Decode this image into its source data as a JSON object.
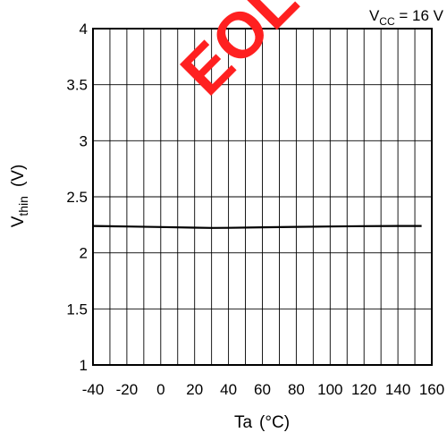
{
  "chart_data": {
    "type": "line",
    "xlabel": "Ta",
    "xlabel_unit": "(°C)",
    "ylabel_main": "V",
    "ylabel_sub": "thin",
    "ylabel_unit": "(V)",
    "xlim": [
      -40,
      160
    ],
    "ylim": [
      1,
      4
    ],
    "x_ticks": [
      -40,
      -20,
      0,
      20,
      40,
      60,
      80,
      100,
      120,
      140,
      160
    ],
    "y_ticks": [
      1,
      1.5,
      2,
      2.5,
      3,
      3.5,
      4
    ],
    "grid": true,
    "annotation": {
      "main": "V",
      "sub": "CC",
      "rest": " = 16 V"
    },
    "watermark": "EOL",
    "series": [
      {
        "x": [
          -40,
          -20,
          0,
          20,
          30,
          40,
          60,
          80,
          100,
          120,
          140,
          154
        ],
        "y": [
          2.24,
          2.235,
          2.23,
          2.225,
          2.222,
          2.223,
          2.228,
          2.232,
          2.235,
          2.238,
          2.24,
          2.24
        ],
        "color": "#000000"
      }
    ]
  }
}
